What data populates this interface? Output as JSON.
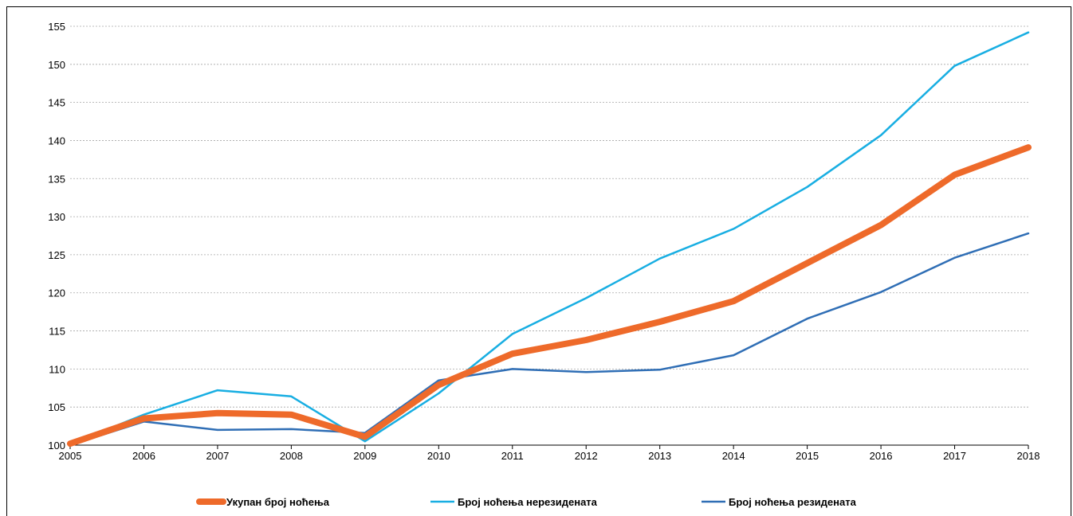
{
  "chart_data": {
    "type": "line",
    "title": "",
    "xlabel": "",
    "ylabel": "",
    "x": [
      "2005",
      "2006",
      "2007",
      "2008",
      "2009",
      "2010",
      "2011",
      "2012",
      "2013",
      "2014",
      "2015",
      "2016",
      "2017",
      "2018"
    ],
    "ylim": [
      100,
      155
    ],
    "yticks": [
      100,
      105,
      110,
      115,
      120,
      125,
      130,
      135,
      140,
      145,
      150,
      155
    ],
    "grid": "horizontal dashed",
    "legend_position": "bottom",
    "series": [
      {
        "name": "Укупан број ноћења",
        "color": "#ee6a2a",
        "width": "thick",
        "values": [
          100.2,
          103.5,
          104.2,
          104.0,
          101.1,
          107.9,
          112.0,
          113.8,
          116.2,
          118.9,
          123.9,
          128.9,
          135.5,
          139.1
        ]
      },
      {
        "name": "Број ноћења нерезидената",
        "color": "#18aee2",
        "width": "thin",
        "values": [
          100.1,
          104.0,
          107.2,
          106.4,
          100.5,
          106.8,
          114.6,
          119.3,
          124.5,
          128.4,
          133.9,
          140.7,
          149.8,
          154.2
        ]
      },
      {
        "name": "Број ноћења резидената",
        "color": "#2f6eb5",
        "width": "thin",
        "values": [
          100.0,
          103.1,
          102.0,
          102.1,
          101.6,
          108.5,
          110.0,
          109.6,
          109.9,
          111.8,
          116.6,
          120.1,
          124.6,
          127.8
        ]
      }
    ]
  }
}
